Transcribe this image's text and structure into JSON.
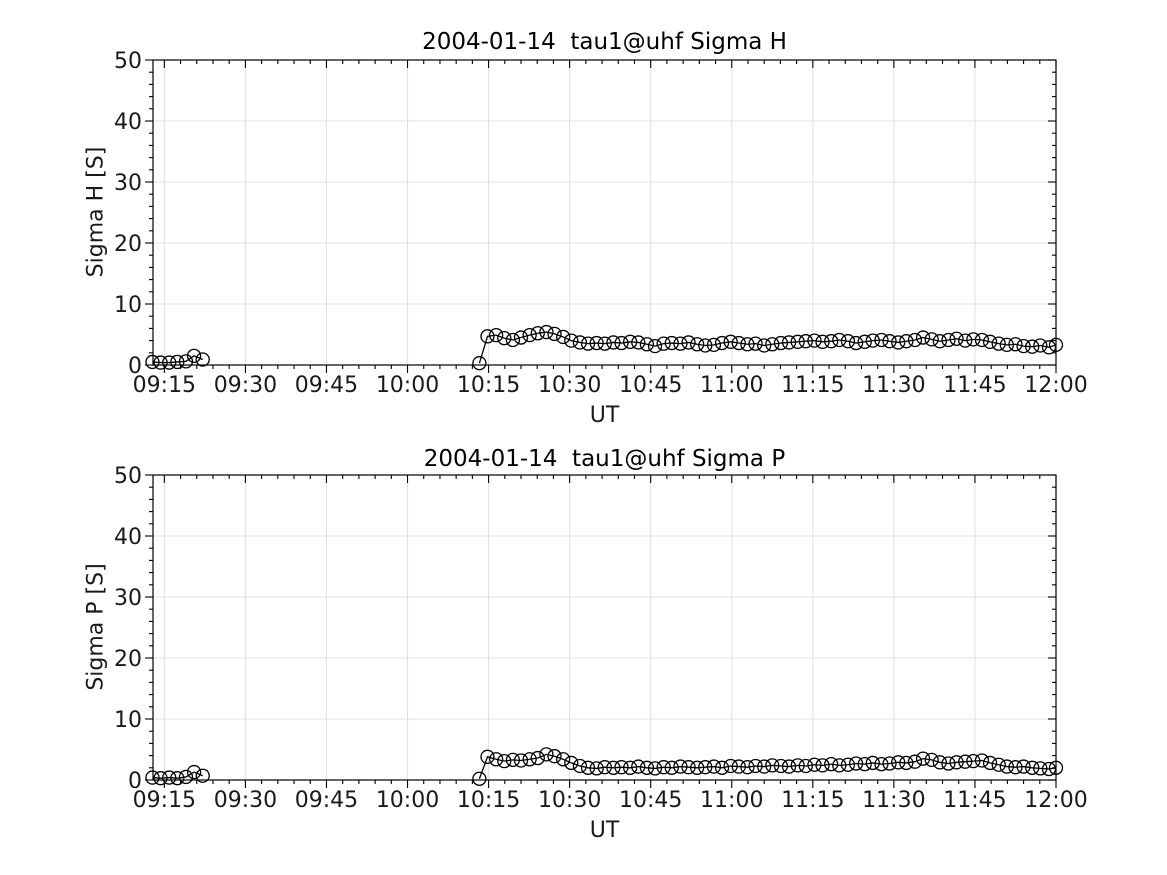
{
  "figure": {
    "background_color": "#ffffff",
    "axis_color": "#000000",
    "label_color": "#1a1a1a",
    "grid_color": "#e0e0e0"
  },
  "chart_data": [
    {
      "type": "line",
      "title": "2004-01-14  tau1@uhf Sigma H",
      "xlabel": "UT",
      "ylabel": "Sigma H [S]",
      "marker": "open-circle",
      "marker_color": "#000000",
      "line_color": "#000000",
      "grid": true,
      "legend": null,
      "ylim": [
        0,
        50
      ],
      "y_major_ticks": [
        0,
        10,
        20,
        30,
        40,
        50
      ],
      "y_minor_step": 2,
      "xlim_minutes": [
        552.9,
        720
      ],
      "x_major_tick_labels": [
        "09:15",
        "09:30",
        "09:45",
        "10:00",
        "10:15",
        "10:30",
        "10:45",
        "11:00",
        "11:15",
        "11:30",
        "11:45",
        "12:00"
      ],
      "x_minor_step_minutes": 3,
      "series": [
        {
          "name": "segment-early",
          "x_minutes": [
            552.8,
            554.3,
            555.9,
            557.4,
            559.0,
            560.5,
            562.1
          ],
          "values": [
            0.5,
            0.4,
            0.4,
            0.5,
            0.6,
            1.5,
            0.9
          ]
        },
        {
          "name": "segment-main",
          "x_minutes": [
            613.3,
            614.8,
            616.4,
            617.9,
            619.5,
            621.0,
            622.6,
            624.1,
            625.7,
            627.2,
            628.8,
            630.3,
            631.9,
            633.4,
            635.0,
            636.5,
            638.1,
            639.6,
            641.2,
            642.7,
            644.3,
            645.8,
            647.4,
            648.9,
            650.5,
            652.0,
            653.6,
            655.1,
            656.7,
            658.2,
            659.8,
            661.3,
            662.9,
            664.4,
            666.0,
            667.5,
            669.1,
            670.6,
            672.2,
            673.7,
            675.3,
            676.8,
            678.4,
            679.9,
            681.5,
            683.0,
            684.6,
            686.1,
            687.7,
            689.2,
            690.8,
            692.3,
            693.9,
            695.4,
            697.0,
            698.5,
            700.1,
            701.6,
            703.2,
            704.7,
            706.3,
            707.8,
            709.4,
            710.9,
            712.5,
            714.0,
            715.6,
            717.1,
            718.7,
            720.0
          ],
          "values": [
            0.3,
            4.7,
            4.9,
            4.4,
            4.1,
            4.5,
            4.9,
            5.2,
            5.4,
            5.1,
            4.6,
            4.0,
            3.7,
            3.5,
            3.6,
            3.5,
            3.7,
            3.6,
            3.8,
            3.7,
            3.4,
            3.1,
            3.5,
            3.6,
            3.5,
            3.7,
            3.4,
            3.2,
            3.3,
            3.6,
            3.8,
            3.6,
            3.4,
            3.5,
            3.2,
            3.4,
            3.6,
            3.7,
            3.8,
            3.9,
            4.0,
            3.8,
            3.9,
            4.1,
            3.9,
            3.6,
            3.8,
            4.0,
            4.1,
            3.9,
            3.7,
            3.9,
            4.1,
            4.5,
            4.2,
            3.9,
            4.1,
            4.3,
            4.0,
            4.2,
            4.1,
            3.8,
            3.5,
            3.3,
            3.4,
            3.1,
            3.0,
            3.2,
            2.9,
            3.3
          ]
        }
      ]
    },
    {
      "type": "line",
      "title": "2004-01-14  tau1@uhf Sigma P",
      "xlabel": "UT",
      "ylabel": "Sigma P [S]",
      "marker": "open-circle",
      "marker_color": "#000000",
      "line_color": "#000000",
      "grid": true,
      "legend": null,
      "ylim": [
        0,
        50
      ],
      "y_major_ticks": [
        0,
        10,
        20,
        30,
        40,
        50
      ],
      "y_minor_step": 2,
      "xlim_minutes": [
        552.9,
        720
      ],
      "x_major_tick_labels": [
        "09:15",
        "09:30",
        "09:45",
        "10:00",
        "10:15",
        "10:30",
        "10:45",
        "11:00",
        "11:15",
        "11:30",
        "11:45",
        "12:00"
      ],
      "x_minor_step_minutes": 3,
      "series": [
        {
          "name": "segment-early",
          "x_minutes": [
            552.8,
            554.3,
            555.9,
            557.4,
            559.0,
            560.5,
            562.1
          ],
          "values": [
            0.4,
            0.3,
            0.4,
            0.3,
            0.5,
            1.3,
            0.7
          ]
        },
        {
          "name": "segment-main",
          "x_minutes": [
            613.3,
            614.8,
            616.4,
            617.9,
            619.5,
            621.0,
            622.6,
            624.1,
            625.7,
            627.2,
            628.8,
            630.3,
            631.9,
            633.4,
            635.0,
            636.5,
            638.1,
            639.6,
            641.2,
            642.7,
            644.3,
            645.8,
            647.4,
            648.9,
            650.5,
            652.0,
            653.6,
            655.1,
            656.7,
            658.2,
            659.8,
            661.3,
            662.9,
            664.4,
            666.0,
            667.5,
            669.1,
            670.6,
            672.2,
            673.7,
            675.3,
            676.8,
            678.4,
            679.9,
            681.5,
            683.0,
            684.6,
            686.1,
            687.7,
            689.2,
            690.8,
            692.3,
            693.9,
            695.4,
            697.0,
            698.5,
            700.1,
            701.6,
            703.2,
            704.7,
            706.3,
            707.8,
            709.4,
            710.9,
            712.5,
            714.0,
            715.6,
            717.1,
            718.7,
            720.0
          ],
          "values": [
            0.2,
            3.8,
            3.4,
            3.1,
            3.3,
            3.2,
            3.4,
            3.6,
            4.2,
            3.9,
            3.4,
            2.8,
            2.3,
            2.0,
            1.9,
            2.1,
            2.0,
            2.1,
            2.0,
            2.2,
            2.0,
            1.9,
            2.1,
            2.0,
            2.2,
            2.1,
            2.0,
            2.1,
            2.2,
            2.0,
            2.3,
            2.2,
            2.1,
            2.3,
            2.2,
            2.4,
            2.3,
            2.2,
            2.4,
            2.3,
            2.5,
            2.4,
            2.6,
            2.4,
            2.5,
            2.7,
            2.6,
            2.8,
            2.6,
            2.7,
            2.9,
            2.8,
            3.0,
            3.5,
            3.3,
            2.9,
            2.7,
            2.9,
            3.0,
            3.1,
            3.2,
            2.8,
            2.5,
            2.2,
            2.1,
            2.2,
            2.0,
            1.9,
            1.8,
            2.0
          ]
        }
      ]
    }
  ]
}
